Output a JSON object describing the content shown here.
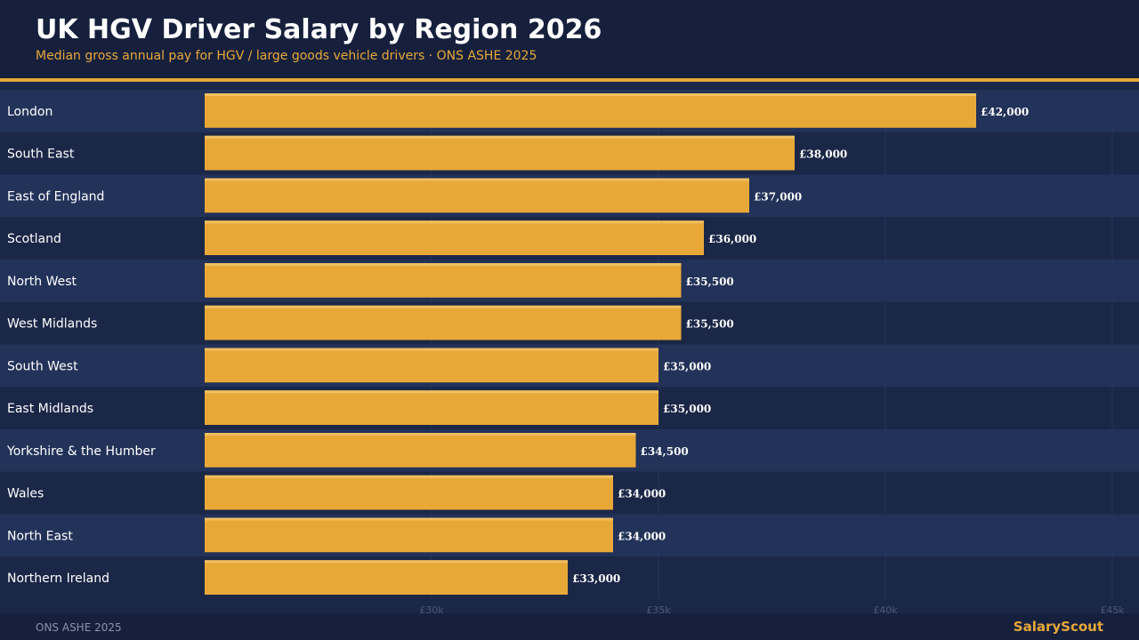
{
  "header": {
    "title": "UK HGV Driver Salary by Region 2026",
    "subtitle": "Median gross annual pay for HGV / large goods vehicle drivers · ONS ASHE 2025"
  },
  "footer": {
    "source": "ONS ASHE 2025",
    "brand": "SalaryScout"
  },
  "colors": {
    "bar": "#e8a838",
    "bar_highlight": "#f0bf62",
    "row_even": "#223259",
    "row_odd": "#1b2747",
    "label_text": "#ffffff",
    "tick_text": "#4c5877"
  },
  "chart_data": {
    "type": "bar",
    "orientation": "horizontal",
    "categories": [
      "London",
      "South East",
      "East of England",
      "Scotland",
      "North West",
      "West Midlands",
      "South West",
      "East Midlands",
      "Yorkshire & the Humber",
      "Wales",
      "North East",
      "Northern Ireland"
    ],
    "values": [
      42000,
      38000,
      37000,
      36000,
      35500,
      35500,
      35000,
      35000,
      34500,
      34000,
      34000,
      33000
    ],
    "value_labels": [
      "£42,000",
      "£38,000",
      "£37,000",
      "£36,000",
      "£35,500",
      "£35,500",
      "£35,000",
      "£35,000",
      "£34,500",
      "£34,000",
      "£34,000",
      "£33,000"
    ],
    "xlim": [
      25000,
      45000
    ],
    "xticks": [
      30000,
      35000,
      40000,
      45000
    ],
    "xtick_labels": [
      "£30k",
      "£35k",
      "£40k",
      "£45k"
    ],
    "grid": true
  }
}
